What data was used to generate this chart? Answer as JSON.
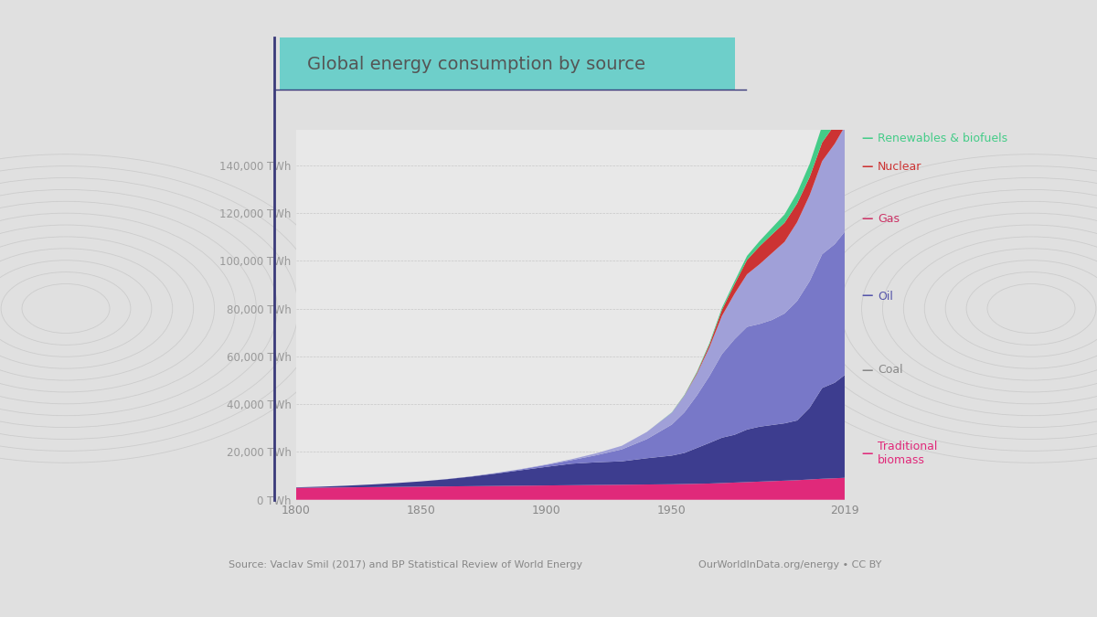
{
  "title": "Global energy consumption by source",
  "title_bg_color": "#6ecfca",
  "title_text_color": "#555555",
  "bg_color": "#e0e0e0",
  "plot_bg_color": "#e8e8e8",
  "years": [
    1800,
    1810,
    1820,
    1830,
    1840,
    1850,
    1860,
    1870,
    1880,
    1890,
    1900,
    1910,
    1920,
    1930,
    1940,
    1950,
    1955,
    1960,
    1965,
    1970,
    1975,
    1980,
    1985,
    1990,
    1995,
    2000,
    2005,
    2010,
    2015,
    2019
  ],
  "traditional_biomass": [
    5000,
    5100,
    5200,
    5300,
    5400,
    5500,
    5600,
    5700,
    5800,
    5900,
    6000,
    6100,
    6200,
    6300,
    6400,
    6500,
    6600,
    6700,
    6800,
    7000,
    7200,
    7400,
    7600,
    7800,
    8000,
    8200,
    8500,
    8800,
    9000,
    9200
  ],
  "coal": [
    200,
    400,
    700,
    1100,
    1600,
    2200,
    3000,
    4000,
    5200,
    6500,
    7800,
    9000,
    9500,
    9800,
    11000,
    12000,
    13000,
    15000,
    17000,
    19000,
    20000,
    22000,
    23000,
    23500,
    24000,
    25000,
    30000,
    38000,
    40000,
    43000
  ],
  "oil": [
    0,
    0,
    0,
    0,
    0,
    0,
    50,
    100,
    200,
    400,
    800,
    1500,
    3000,
    5000,
    8000,
    13000,
    17000,
    22000,
    28000,
    35000,
    40000,
    43000,
    43000,
    44000,
    46000,
    50000,
    53000,
    56000,
    58000,
    60000
  ],
  "gas": [
    0,
    0,
    0,
    0,
    0,
    0,
    0,
    0,
    50,
    100,
    200,
    400,
    800,
    1500,
    3000,
    5000,
    7000,
    9000,
    12000,
    16000,
    19000,
    22000,
    25000,
    28000,
    30000,
    33000,
    36000,
    39000,
    42000,
    44000
  ],
  "nuclear": [
    0,
    0,
    0,
    0,
    0,
    0,
    0,
    0,
    0,
    0,
    0,
    0,
    0,
    0,
    0,
    10,
    100,
    500,
    1200,
    2500,
    4000,
    6000,
    7500,
    7800,
    8000,
    7800,
    7600,
    7800,
    8000,
    8000
  ],
  "renewables": [
    0,
    0,
    0,
    0,
    0,
    0,
    0,
    0,
    0,
    0,
    0,
    0,
    0,
    0,
    0,
    100,
    200,
    400,
    600,
    900,
    1200,
    1700,
    2200,
    2800,
    3500,
    4500,
    5500,
    7000,
    10000,
    15000
  ],
  "colors": {
    "traditional_biomass": "#e0297a",
    "coal": "#3d3d8f",
    "oil": "#7878c8",
    "gas": "#a0a0d8",
    "nuclear": "#cc3333",
    "renewables": "#44cc88"
  },
  "legend_items": [
    {
      "key": "renewables",
      "label": "Renewables & biofuels",
      "color": "#44cc88"
    },
    {
      "key": "nuclear",
      "label": "Nuclear",
      "color": "#cc3333"
    },
    {
      "key": "gas",
      "label": "Gas",
      "color": "#cc3366"
    },
    {
      "key": "oil",
      "label": "Oil",
      "color": "#5555aa"
    },
    {
      "key": "coal",
      "label": "Coal",
      "color": "#888888"
    },
    {
      "key": "traditional_biomass",
      "label": "Traditional\nbiomass",
      "color": "#e0297a"
    }
  ],
  "yticks": [
    0,
    20000,
    40000,
    60000,
    80000,
    100000,
    120000,
    140000
  ],
  "ytick_labels": [
    "0 TWh",
    "20,000 TWh",
    "40,000 TWh",
    "60,000 TWh",
    "80,000 TWh",
    "100,000 TWh",
    "120,000 TWh",
    "140,000 TWh"
  ],
  "xticks": [
    1800,
    1850,
    1900,
    1950,
    2019
  ],
  "source_text": "Source: Vaclav Smil (2017) and BP Statistical Review of World Energy",
  "credit_text": "OurWorldInData.org/energy • CC BY",
  "ymax": 155000,
  "accent_color": "#3a3a7a"
}
